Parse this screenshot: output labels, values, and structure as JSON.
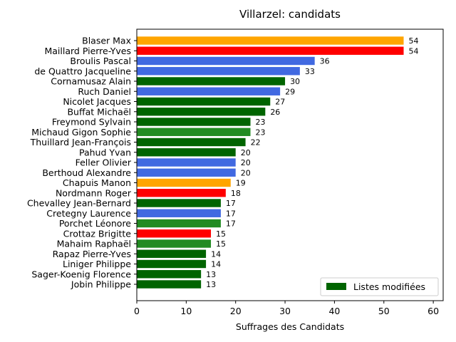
{
  "chart_data": {
    "type": "bar",
    "orientation": "horizontal",
    "title": "Villarzel: candidats",
    "xlabel": "Suffrages des Candidats",
    "ylabel": "",
    "xlim": [
      0,
      62
    ],
    "xticks": [
      "0",
      "10",
      "20",
      "30",
      "40",
      "50",
      "60"
    ],
    "grid": false,
    "legend": {
      "label": "Listes modifiées",
      "color": "#006400",
      "position": "lower-right"
    },
    "categories": [
      "Blaser Max",
      "Maillard Pierre-Yves",
      "Broulis Pascal",
      "de Quattro Jacqueline",
      "Cornamusaz Alain",
      "Ruch Daniel",
      "Nicolet Jacques",
      "Buffat Michaël",
      "Freymond Sylvain",
      "Michaud Gigon Sophie",
      "Thuillard Jean-François",
      "Pahud Yvan",
      "Feller Olivier",
      "Berthoud Alexandre",
      "Chapuis Manon",
      "Nordmann Roger",
      "Chevalley Jean-Bernard",
      "Cretegny Laurence",
      "Porchet Léonore",
      "Crottaz Brigitte",
      "Mahaim Raphaël",
      "Rapaz Pierre-Yves",
      "Liniger Philippe",
      "Sager-Koenig Florence",
      "Jobin Philippe"
    ],
    "values": [
      54,
      54,
      36,
      33,
      30,
      29,
      27,
      26,
      23,
      23,
      22,
      20,
      20,
      20,
      19,
      18,
      17,
      17,
      17,
      15,
      15,
      14,
      14,
      13,
      13
    ],
    "value_labels": [
      "54",
      "54",
      "36",
      "33",
      "30",
      "29",
      "27",
      "26",
      "23",
      "23",
      "22",
      "20",
      "20",
      "20",
      "19",
      "18",
      "17",
      "17",
      "17",
      "15",
      "15",
      "14",
      "14",
      "13",
      "13"
    ],
    "colors": [
      "#FFA500",
      "#FF0000",
      "#4169E1",
      "#4169E1",
      "#006400",
      "#4169E1",
      "#006400",
      "#006400",
      "#006400",
      "#228B22",
      "#006400",
      "#006400",
      "#4169E1",
      "#4169E1",
      "#FFA500",
      "#FF0000",
      "#006400",
      "#4169E1",
      "#228B22",
      "#FF0000",
      "#228B22",
      "#006400",
      "#006400",
      "#006400",
      "#006400"
    ]
  }
}
